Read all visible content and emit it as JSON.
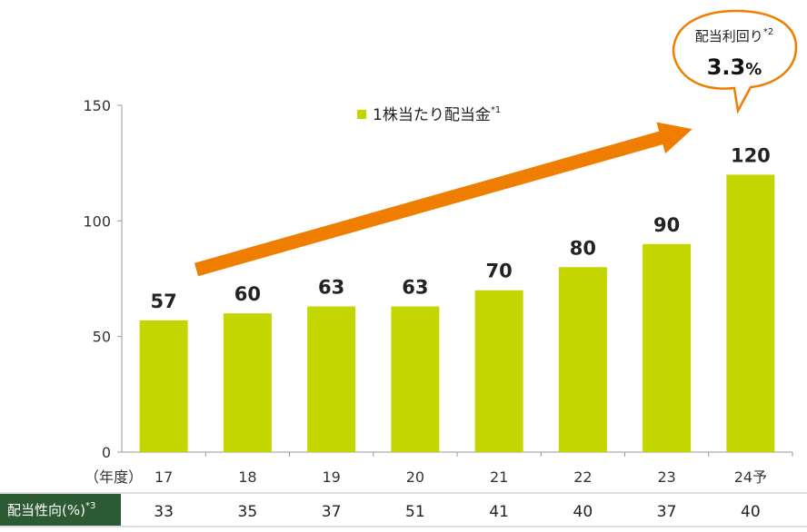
{
  "chart_data": {
    "type": "bar",
    "categories": [
      "17",
      "18",
      "19",
      "20",
      "21",
      "22",
      "23",
      "24予"
    ],
    "values": [
      57,
      60,
      63,
      63,
      70,
      80,
      90,
      120
    ],
    "ylim": [
      0,
      150
    ],
    "yticks": [
      0,
      50,
      100,
      150
    ],
    "x_axis_prefix": "（年度）",
    "legend": {
      "label": "1株当たり配当金",
      "sup": "*1",
      "placement": "top-center"
    },
    "bar_color": "#c4d600",
    "arrow_color": "#ef7d00",
    "callout": {
      "label": "配当利回り",
      "sup": "*2",
      "value": "3.3",
      "unit": "%"
    },
    "table_row": {
      "label": "配当性向(%)",
      "sup": "*3",
      "label_bg": "#2c5a33",
      "values": [
        "33",
        "35",
        "37",
        "51",
        "41",
        "40",
        "37",
        "40"
      ]
    }
  }
}
